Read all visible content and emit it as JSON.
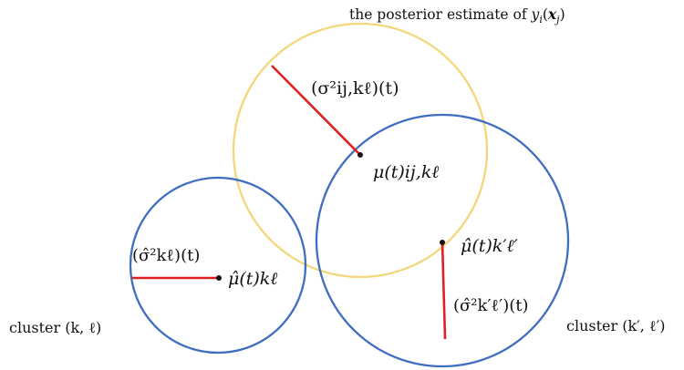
{
  "title": "the posterior estimate of y_i(x_j)",
  "title_parts": {
    "prefix": "the posterior estimate of ",
    "y": "y",
    "i": "i",
    "open": "(",
    "x": "x",
    "j": "j",
    "close": ")"
  },
  "labels": {
    "cluster_left": "cluster (k, ℓ)",
    "cluster_right": "cluster (k′, ℓ′)",
    "radius_posterior": "(σ²ij,kℓ)(t)",
    "center_posterior": "μ(t)ij,kℓ",
    "radius_left": "(σ̂²kℓ)(t)",
    "center_left": "μ̂(t)kℓ",
    "center_right": "μ̂(t)k′ℓ′",
    "radius_right": "(σ̂²k′ℓ′)(t)"
  },
  "colors": {
    "posterior_circle": "#F3D77A",
    "cluster_circle": "#3F6DBF",
    "radius_line": "#E02020",
    "center_point": "#111111"
  }
}
